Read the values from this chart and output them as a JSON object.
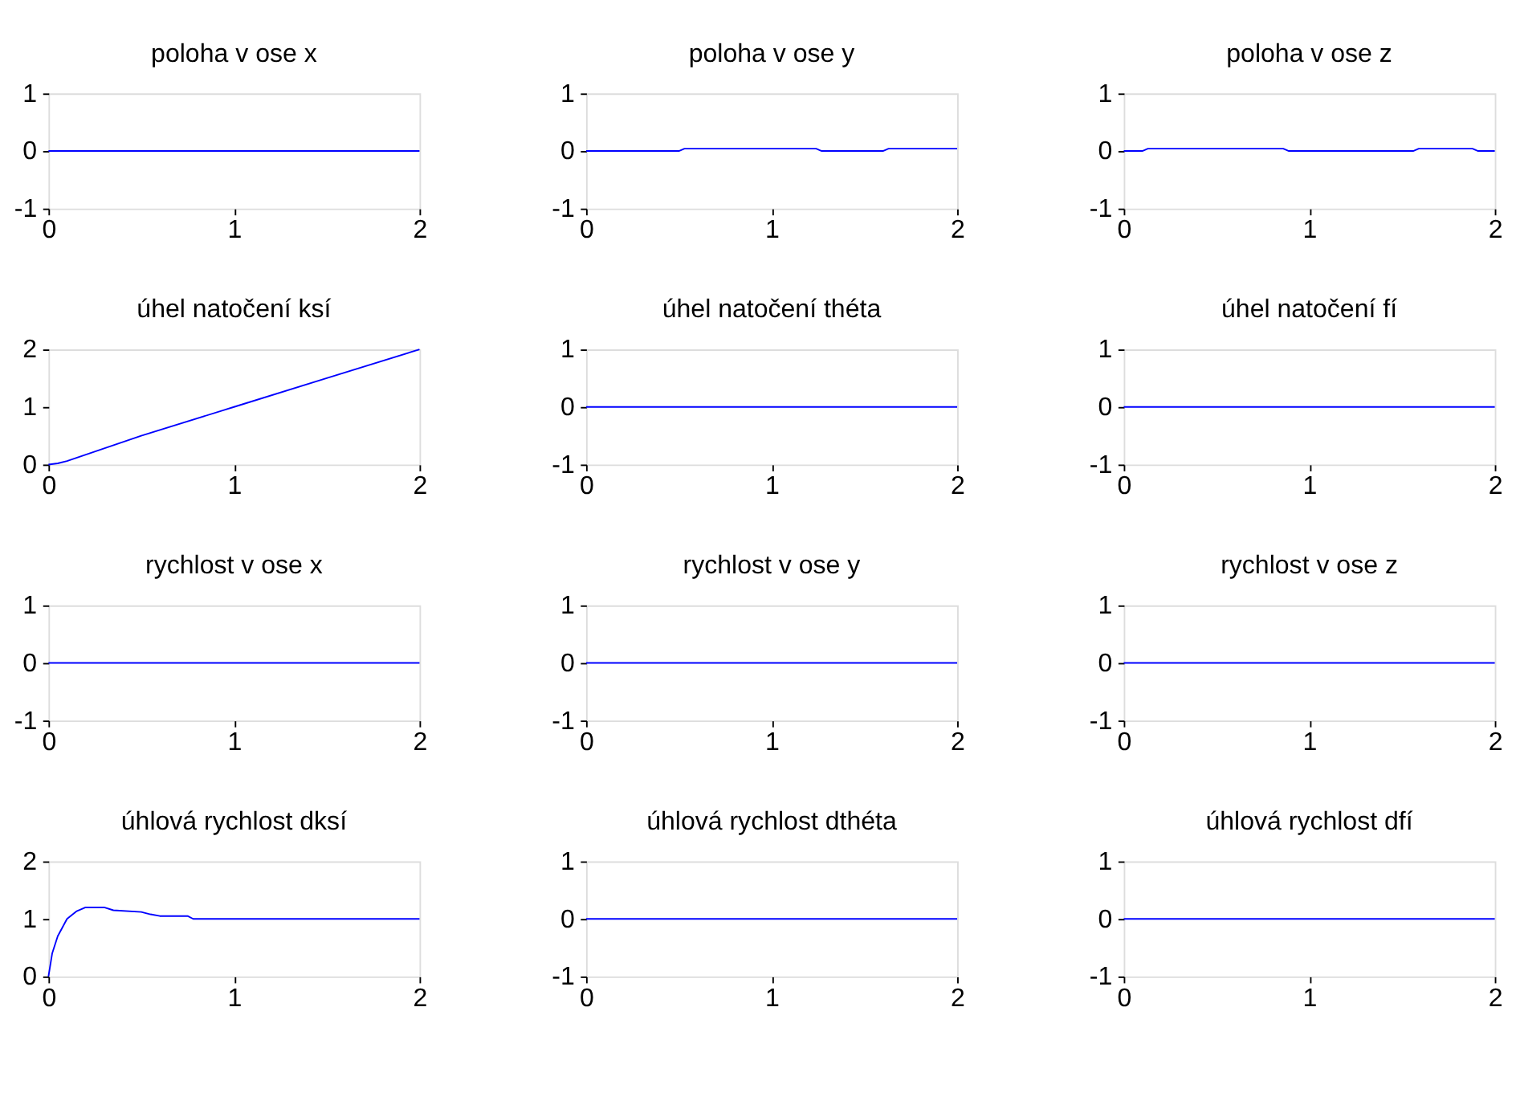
{
  "chart_data": [
    {
      "type": "line",
      "title": "poloha v ose x",
      "x": [
        0,
        2
      ],
      "series": [
        {
          "color": "#0000ff",
          "values": [
            0,
            0
          ]
        }
      ],
      "xlim": [
        0,
        2
      ],
      "xticks": [
        0,
        1,
        2
      ],
      "ylim": [
        -1,
        1
      ],
      "yticks": [
        -1,
        0,
        1
      ],
      "grid": false,
      "marker": "none",
      "line_style": "solid"
    },
    {
      "type": "line",
      "title": "poloha v ose y",
      "x": [
        0,
        0.5,
        0.53,
        1.24,
        1.27,
        1.6,
        1.63,
        2
      ],
      "series": [
        {
          "color": "#0000ff",
          "values": [
            0,
            0,
            0.04,
            0.04,
            0,
            0,
            0.04,
            0.04
          ]
        }
      ],
      "xlim": [
        0,
        2
      ],
      "xticks": [
        0,
        1,
        2
      ],
      "ylim": [
        -1,
        1
      ],
      "yticks": [
        -1,
        0,
        1
      ],
      "grid": false,
      "marker": "none",
      "line_style": "solid"
    },
    {
      "type": "line",
      "title": "poloha v ose z",
      "x": [
        0,
        0.1,
        0.13,
        0.86,
        0.89,
        1.56,
        1.59,
        1.88,
        1.91,
        2
      ],
      "series": [
        {
          "color": "#0000ff",
          "values": [
            0,
            0,
            0.04,
            0.04,
            0,
            0,
            0.04,
            0.04,
            0,
            0
          ]
        }
      ],
      "xlim": [
        0,
        2
      ],
      "xticks": [
        0,
        1,
        2
      ],
      "ylim": [
        -1,
        1
      ],
      "yticks": [
        -1,
        0,
        1
      ],
      "grid": false,
      "marker": "none",
      "line_style": "solid"
    },
    {
      "type": "line",
      "title": "úhel natočení ksí",
      "x": [
        0,
        0.05,
        0.1,
        0.5,
        1,
        1.5,
        2
      ],
      "series": [
        {
          "color": "#0000ff",
          "values": [
            0,
            0.02,
            0.06,
            0.5,
            1,
            1.5,
            2
          ]
        }
      ],
      "xlim": [
        0,
        2
      ],
      "xticks": [
        0,
        1,
        2
      ],
      "ylim": [
        0,
        2
      ],
      "yticks": [
        0,
        1,
        2
      ],
      "grid": false,
      "marker": "none",
      "line_style": "solid"
    },
    {
      "type": "line",
      "title": "úhel natočení théta",
      "x": [
        0,
        2
      ],
      "series": [
        {
          "color": "#0000ff",
          "values": [
            0,
            0
          ]
        }
      ],
      "xlim": [
        0,
        2
      ],
      "xticks": [
        0,
        1,
        2
      ],
      "ylim": [
        -1,
        1
      ],
      "yticks": [
        -1,
        0,
        1
      ],
      "grid": false,
      "marker": "none",
      "line_style": "solid"
    },
    {
      "type": "line",
      "title": "úhel natočení fí",
      "x": [
        0,
        2
      ],
      "series": [
        {
          "color": "#0000ff",
          "values": [
            0,
            0
          ]
        }
      ],
      "xlim": [
        0,
        2
      ],
      "xticks": [
        0,
        1,
        2
      ],
      "ylim": [
        -1,
        1
      ],
      "yticks": [
        -1,
        0,
        1
      ],
      "grid": false,
      "marker": "none",
      "line_style": "solid"
    },
    {
      "type": "line",
      "title": "rychlost v ose x",
      "x": [
        0,
        2
      ],
      "series": [
        {
          "color": "#0000ff",
          "values": [
            0,
            0
          ]
        }
      ],
      "xlim": [
        0,
        2
      ],
      "xticks": [
        0,
        1,
        2
      ],
      "ylim": [
        -1,
        1
      ],
      "yticks": [
        -1,
        0,
        1
      ],
      "grid": false,
      "marker": "none",
      "line_style": "solid"
    },
    {
      "type": "line",
      "title": "rychlost v ose y",
      "x": [
        0,
        2
      ],
      "series": [
        {
          "color": "#0000ff",
          "values": [
            0,
            0
          ]
        }
      ],
      "xlim": [
        0,
        2
      ],
      "xticks": [
        0,
        1,
        2
      ],
      "ylim": [
        -1,
        1
      ],
      "yticks": [
        -1,
        0,
        1
      ],
      "grid": false,
      "marker": "none",
      "line_style": "solid"
    },
    {
      "type": "line",
      "title": "rychlost v ose z",
      "x": [
        0,
        2
      ],
      "series": [
        {
          "color": "#0000ff",
          "values": [
            0,
            0
          ]
        }
      ],
      "xlim": [
        0,
        2
      ],
      "xticks": [
        0,
        1,
        2
      ],
      "ylim": [
        -1,
        1
      ],
      "yticks": [
        -1,
        0,
        1
      ],
      "grid": false,
      "marker": "none",
      "line_style": "solid"
    },
    {
      "type": "line",
      "title": "úhlová rychlost dksí",
      "x": [
        0,
        0.02,
        0.05,
        0.1,
        0.15,
        0.2,
        0.3,
        0.35,
        0.5,
        0.55,
        0.6,
        0.75,
        0.78,
        2
      ],
      "series": [
        {
          "color": "#0000ff",
          "values": [
            0,
            0.4,
            0.7,
            1.0,
            1.13,
            1.2,
            1.2,
            1.15,
            1.12,
            1.08,
            1.05,
            1.05,
            1.0,
            1.0
          ]
        }
      ],
      "xlim": [
        0,
        2
      ],
      "xticks": [
        0,
        1,
        2
      ],
      "ylim": [
        0,
        2
      ],
      "yticks": [
        0,
        1,
        2
      ],
      "grid": false,
      "marker": "none",
      "line_style": "solid"
    },
    {
      "type": "line",
      "title": "úhlová rychlost dthéta",
      "x": [
        0,
        2
      ],
      "series": [
        {
          "color": "#0000ff",
          "values": [
            0,
            0
          ]
        }
      ],
      "xlim": [
        0,
        2
      ],
      "xticks": [
        0,
        1,
        2
      ],
      "ylim": [
        -1,
        1
      ],
      "yticks": [
        -1,
        0,
        1
      ],
      "grid": false,
      "marker": "none",
      "line_style": "solid"
    },
    {
      "type": "line",
      "title": "úhlová rychlost dfí",
      "x": [
        0,
        2
      ],
      "series": [
        {
          "color": "#0000ff",
          "values": [
            0,
            0
          ]
        }
      ],
      "xlim": [
        0,
        2
      ],
      "xticks": [
        0,
        1,
        2
      ],
      "ylim": [
        -1,
        1
      ],
      "yticks": [
        -1,
        0,
        1
      ],
      "grid": false,
      "marker": "none",
      "line_style": "solid"
    }
  ]
}
